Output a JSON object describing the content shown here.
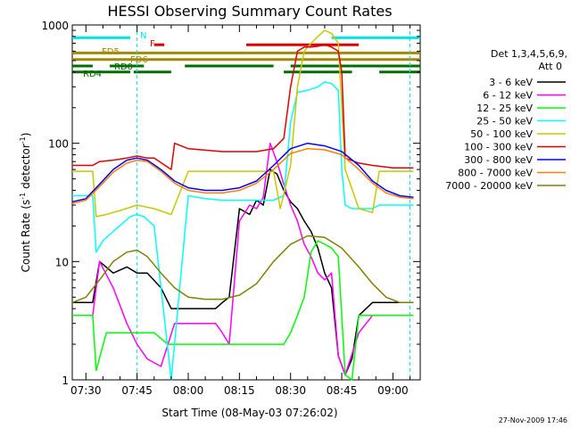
{
  "chart_data": {
    "type": "line",
    "title": "HESSI Observing Summary Count Rates",
    "xlabel": "Start Time (08-May-03 07:26:02)",
    "ylabel_main": "Count Rate (s",
    "ylabel_sup1": "-1",
    "ylabel_mid": " detector",
    "ylabel_sup2": "-1",
    "ylabel_end": ")",
    "yscale": "log",
    "ylim": [
      1,
      1000
    ],
    "xlim_minutes": [
      -4,
      98
    ],
    "x_tick_labels": [
      "07:30",
      "07:45",
      "08:00",
      "08:15",
      "08:30",
      "08:45",
      "09:00"
    ],
    "x_tick_minutes": [
      0,
      15,
      30,
      45,
      60,
      75,
      90
    ],
    "y_tick_labels": [
      "1",
      "10",
      "100",
      "1000"
    ],
    "y_tick_values": [
      1,
      10,
      100,
      1000
    ],
    "legend_title_1": "Det 1,3,4,5,6,9,",
    "legend_title_2": "Att 0",
    "legend_placement": "right",
    "timestamp": "27-Nov-2009 17:46",
    "flag_labels": {
      "N": "N",
      "F": "F",
      "FD5": "FD5",
      "FD6": "FD6",
      "RD0": "RD0",
      "RD4": "RD4"
    },
    "flag_bars": [
      {
        "name": "N",
        "color": "#00e5e5",
        "level": 780,
        "segments": [
          [
            -4,
            13
          ],
          [
            72,
            98
          ]
        ]
      },
      {
        "name": "F",
        "color": "#e00000",
        "level": 680,
        "segments": [
          [
            20,
            23
          ],
          [
            47,
            80
          ]
        ]
      },
      {
        "name": "FD5",
        "color": "#a08a00",
        "level": 580,
        "segments": [
          [
            -4,
            98
          ]
        ]
      },
      {
        "name": "FD6",
        "color": "#a08a00",
        "level": 510,
        "segments": [
          [
            -4,
            98
          ]
        ]
      },
      {
        "name": "RD0",
        "color": "#006e00",
        "level": 450,
        "segments": [
          [
            -4,
            2
          ],
          [
            7,
            17
          ],
          [
            29,
            55
          ],
          [
            60,
            98
          ]
        ]
      },
      {
        "name": "RD4",
        "color": "#006e00",
        "level": 400,
        "segments": [
          [
            -4,
            13
          ],
          [
            14,
            25
          ],
          [
            58,
            78
          ],
          [
            86,
            98
          ]
        ]
      }
    ],
    "saa_lines_minutes": [
      15,
      95
    ],
    "series": [
      {
        "name": "3 - 6 keV",
        "color": "#000000",
        "x": [
          -4,
          2,
          4,
          8,
          12,
          15,
          18,
          22,
          25,
          30,
          34,
          38,
          40,
          42,
          45,
          48,
          50,
          52,
          54,
          56,
          58,
          60,
          62,
          64,
          66,
          68,
          70,
          72,
          74,
          76,
          78,
          80,
          84,
          90,
          96
        ],
        "y": [
          4.5,
          4.5,
          10,
          8,
          9,
          8,
          8,
          6,
          4,
          4,
          4,
          4,
          4.5,
          5,
          28,
          25,
          33,
          30,
          60,
          55,
          40,
          32,
          28,
          22,
          18,
          13,
          8,
          6,
          1.6,
          1.1,
          1.5,
          3.5,
          4.5,
          4.5,
          4.5
        ]
      },
      {
        "name": "6 - 12 keV",
        "color": "#ff00ff",
        "x": [
          -4,
          2,
          4,
          8,
          12,
          15,
          18,
          22,
          26,
          30,
          34,
          38,
          40,
          42,
          45,
          48,
          50,
          52,
          54,
          56,
          58,
          60,
          62,
          64,
          66,
          68,
          70,
          72,
          74,
          76,
          80,
          84,
          90,
          96
        ],
        "y": [
          3.5,
          3.5,
          10,
          6,
          3,
          2,
          1.5,
          1.3,
          3,
          3,
          3,
          3,
          2.5,
          2,
          22,
          30,
          28,
          35,
          100,
          70,
          45,
          30,
          22,
          14,
          11,
          8,
          7,
          8,
          1.6,
          1.1,
          2.5,
          3.5,
          3.5,
          3.5
        ]
      },
      {
        "name": "12 - 25 keV",
        "color": "#00ff00",
        "x": [
          -4,
          2,
          3,
          6,
          10,
          15,
          20,
          24,
          28,
          32,
          36,
          40,
          44,
          48,
          52,
          56,
          58,
          60,
          62,
          64,
          66,
          68,
          70,
          72,
          74,
          76,
          78,
          80,
          84,
          90,
          96
        ],
        "y": [
          3.5,
          3.5,
          1.2,
          2.5,
          2.5,
          2.5,
          2.5,
          2,
          2,
          2,
          2,
          2,
          2,
          2,
          2,
          2,
          2,
          2.5,
          3.5,
          5,
          12,
          15,
          14,
          13,
          11,
          1.1,
          1.0,
          3.5,
          3.5,
          3.5,
          3.5
        ]
      },
      {
        "name": "25 - 50 keV",
        "color": "#00ffff",
        "x": [
          -4,
          2,
          3,
          5,
          8,
          13,
          15,
          17,
          20,
          25,
          30,
          35,
          40,
          45,
          50,
          55,
          58,
          60,
          62,
          65,
          68,
          70,
          72,
          74,
          75,
          76,
          78,
          80,
          84,
          86,
          90,
          96
        ],
        "y": [
          36,
          36,
          12,
          15,
          18,
          24,
          25,
          24,
          20,
          1.0,
          36,
          34,
          33,
          33,
          33,
          33,
          36,
          150,
          270,
          280,
          300,
          330,
          320,
          280,
          60,
          30,
          28,
          28,
          28,
          30,
          30,
          30
        ]
      },
      {
        "name": "50 - 100 keV",
        "color": "#c8c800",
        "x": [
          -4,
          2,
          3,
          6,
          10,
          15,
          20,
          25,
          30,
          40,
          50,
          55,
          57,
          60,
          62,
          64,
          66,
          68,
          70,
          72,
          74,
          76,
          80,
          84,
          86,
          90,
          96
        ],
        "y": [
          58,
          58,
          24,
          25,
          27,
          30,
          28,
          25,
          58,
          58,
          58,
          58,
          28,
          65,
          300,
          600,
          700,
          800,
          900,
          850,
          700,
          60,
          28,
          26,
          58,
          58,
          58
        ]
      },
      {
        "name": "100 - 300 keV",
        "color": "#e00000",
        "x": [
          -4,
          2,
          4,
          8,
          12,
          15,
          18,
          20,
          25,
          26,
          30,
          40,
          50,
          55,
          58,
          60,
          62,
          64,
          66,
          68,
          70,
          72,
          74,
          75,
          76,
          80,
          84,
          90,
          96
        ],
        "y": [
          65,
          65,
          70,
          72,
          75,
          78,
          75,
          75,
          60,
          100,
          90,
          85,
          85,
          90,
          110,
          300,
          600,
          650,
          650,
          660,
          680,
          650,
          600,
          400,
          75,
          68,
          65,
          62,
          62
        ]
      },
      {
        "name": "300 - 800 keV",
        "color": "#0000ff",
        "x": [
          -4,
          0,
          4,
          8,
          12,
          15,
          18,
          22,
          26,
          30,
          35,
          40,
          45,
          50,
          55,
          60,
          65,
          70,
          75,
          80,
          84,
          88,
          92,
          96
        ],
        "y": [
          32,
          34,
          45,
          60,
          72,
          75,
          72,
          60,
          48,
          42,
          40,
          40,
          42,
          48,
          65,
          90,
          100,
          95,
          85,
          65,
          48,
          40,
          36,
          35
        ]
      },
      {
        "name": "800 - 7000 keV",
        "color": "#ff8000",
        "x": [
          -4,
          0,
          4,
          8,
          12,
          15,
          18,
          22,
          26,
          30,
          35,
          40,
          45,
          50,
          55,
          60,
          65,
          70,
          75,
          80,
          84,
          88,
          92,
          96
        ],
        "y": [
          31,
          33,
          43,
          57,
          68,
          72,
          70,
          58,
          46,
          40,
          38,
          38,
          40,
          46,
          60,
          82,
          90,
          88,
          80,
          60,
          46,
          38,
          35,
          34
        ]
      },
      {
        "name": "7000 - 20000 keV",
        "color": "#808000",
        "x": [
          -4,
          0,
          4,
          8,
          12,
          15,
          18,
          22,
          26,
          30,
          35,
          40,
          45,
          50,
          55,
          60,
          65,
          70,
          75,
          80,
          84,
          88,
          92,
          96
        ],
        "y": [
          4.5,
          5,
          7,
          10,
          12,
          12.5,
          11,
          8,
          6,
          5,
          4.8,
          4.8,
          5.2,
          6.5,
          10,
          14,
          16.5,
          16,
          13,
          9,
          6.5,
          5,
          4.5,
          4.5
        ]
      }
    ]
  }
}
